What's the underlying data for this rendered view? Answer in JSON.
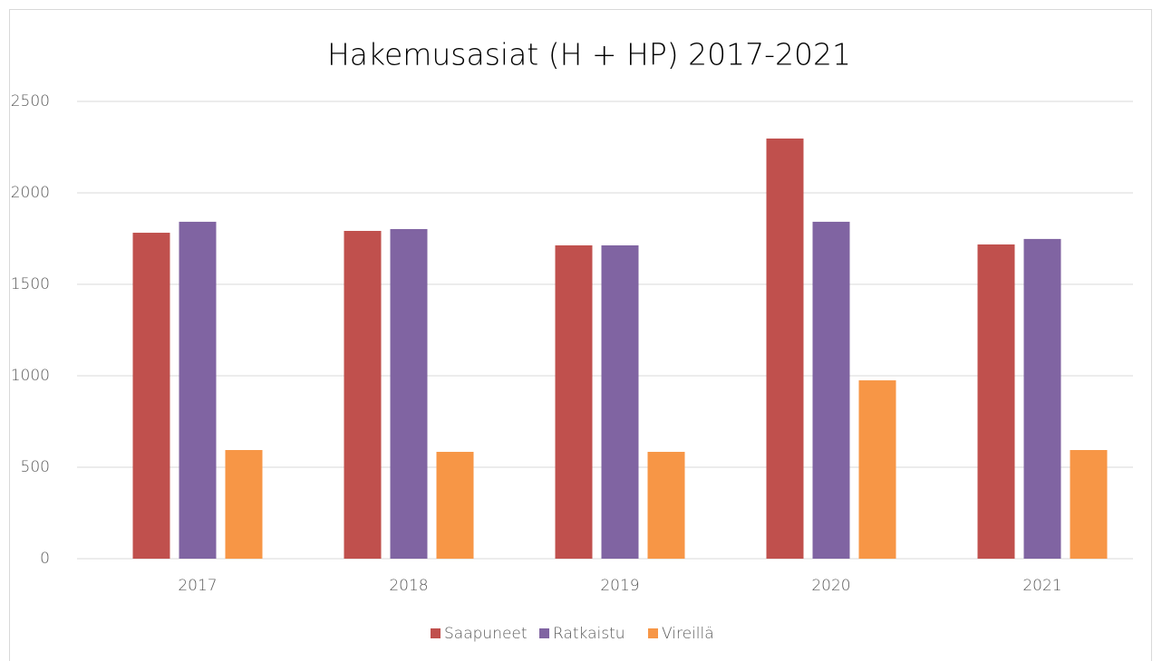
{
  "chart_data": {
    "type": "bar",
    "title": "Hakemusasiat (H + HP) 2017-2021",
    "categories": [
      "2017",
      "2018",
      "2019",
      "2020",
      "2021"
    ],
    "series": [
      {
        "name": "Saapuneet",
        "color": "#c0504d",
        "values": [
          1782,
          1792,
          1713,
          2297,
          1718
        ]
      },
      {
        "name": "Ratkaistu",
        "color": "#8064a2",
        "values": [
          1842,
          1802,
          1713,
          1842,
          1748
        ]
      },
      {
        "name": "Vireillä",
        "color": "#f79646",
        "values": [
          594,
          584,
          584,
          975,
          594
        ]
      }
    ],
    "ylim": [
      0,
      2500
    ],
    "yticks": [
      0,
      500,
      1000,
      1500,
      2000,
      2500
    ],
    "grid": true,
    "legend": "bottom"
  }
}
